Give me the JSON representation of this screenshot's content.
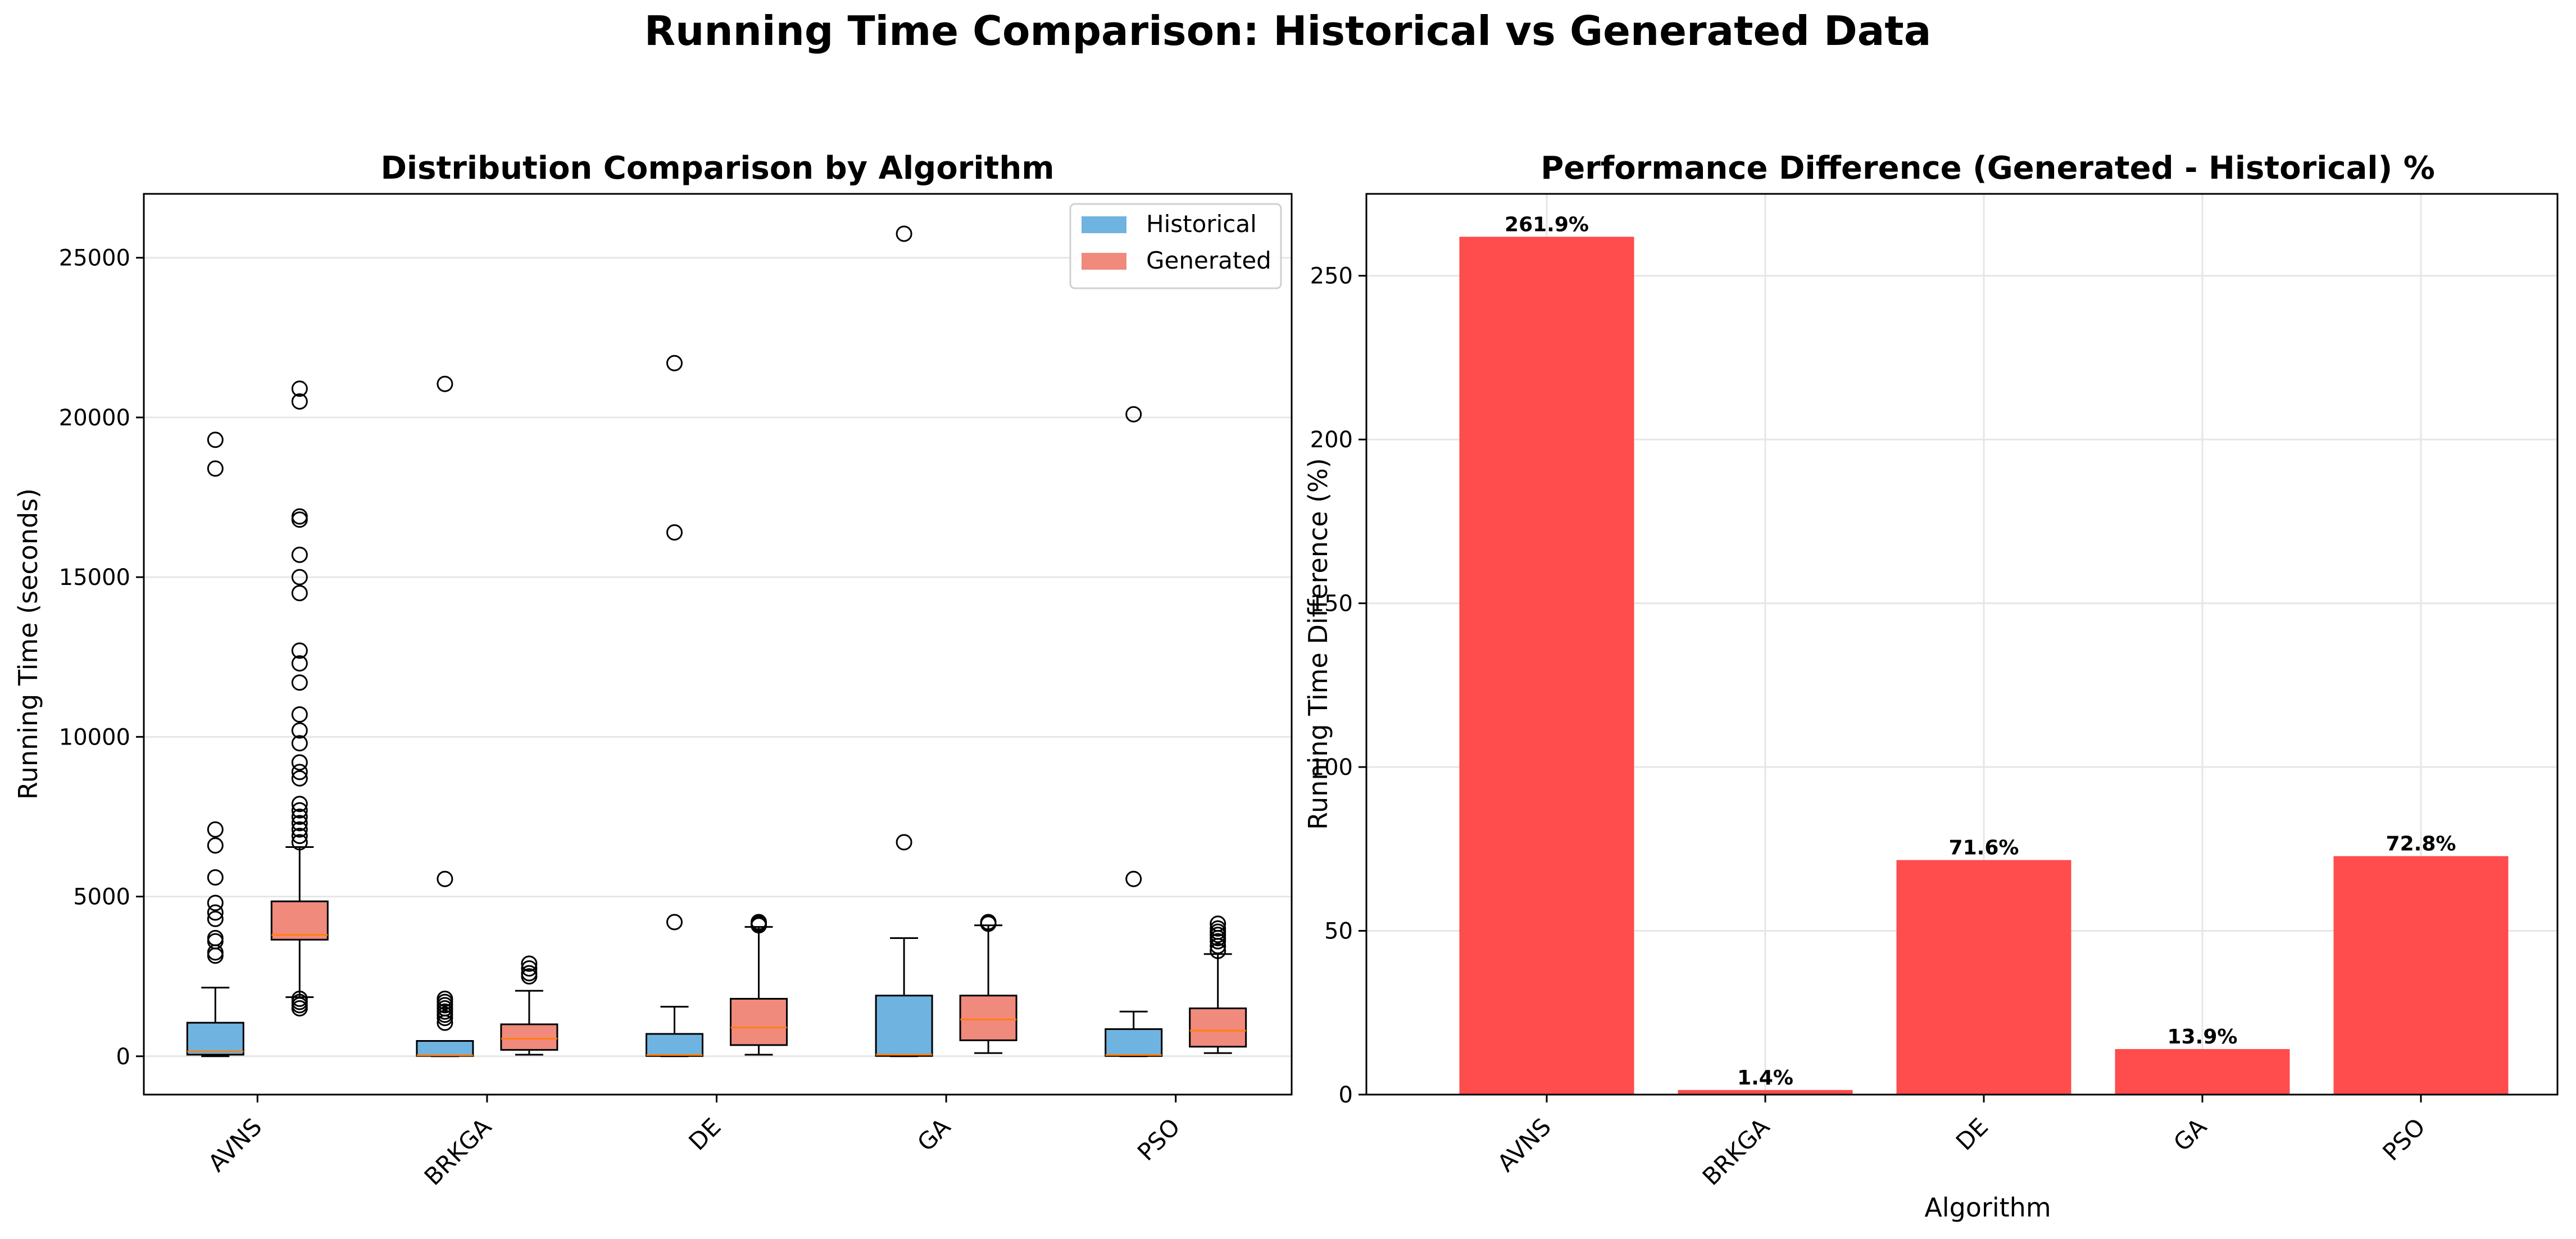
{
  "figure": {
    "title": "Running Time Comparison: Historical vs Generated Data"
  },
  "chart_data": [
    {
      "type": "box",
      "title": "Distribution Comparison by Algorithm",
      "xlabel": "",
      "ylabel": "Running Time (seconds)",
      "categories": [
        "AVNS",
        "BRKGA",
        "DE",
        "GA",
        "PSO"
      ],
      "ylim": [
        -1200,
        27000
      ],
      "yticks": [
        0,
        5000,
        10000,
        15000,
        20000,
        25000
      ],
      "grid": "y",
      "legend_position": "upper right",
      "series": [
        {
          "name": "Historical",
          "color": "#6fb3e0",
          "boxes": [
            {
              "whislo": 0,
              "q1": 50,
              "med": 150,
              "q3": 1050,
              "whishi": 2150,
              "fliers": [
                3150,
                3250,
                3600,
                3700,
                4300,
                4500,
                4800,
                5600,
                6600,
                7100,
                18400,
                19300
              ]
            },
            {
              "whislo": 0,
              "q1": 10,
              "med": 30,
              "q3": 480,
              "whishi": 480,
              "fliers": [
                1050,
                1200,
                1300,
                1400,
                1500,
                1600,
                1700,
                1800,
                5550,
                21050
              ]
            },
            {
              "whislo": 0,
              "q1": 10,
              "med": 40,
              "q3": 700,
              "whishi": 1550,
              "fliers": [
                4200,
                16400,
                21700
              ]
            },
            {
              "whislo": 0,
              "q1": 10,
              "med": 50,
              "q3": 1900,
              "whishi": 3700,
              "fliers": [
                6700,
                25750
              ]
            },
            {
              "whislo": 0,
              "q1": 10,
              "med": 40,
              "q3": 850,
              "whishi": 1400,
              "fliers": [
                5550,
                20100
              ]
            }
          ]
        },
        {
          "name": "Generated",
          "color": "#f08a7c",
          "boxes": [
            {
              "whislo": 1850,
              "q1": 3650,
              "med": 3800,
              "q3": 4850,
              "whishi": 6550,
              "fliers": [
                1500,
                1600,
                1700,
                1800,
                6700,
                6900,
                7100,
                7300,
                7500,
                7700,
                7900,
                8700,
                8900,
                9200,
                9800,
                10200,
                10700,
                11700,
                12300,
                12700,
                14500,
                15000,
                15700,
                16800,
                16900,
                20500,
                20900
              ]
            },
            {
              "whislo": 50,
              "q1": 200,
              "med": 550,
              "q3": 1000,
              "whishi": 2050,
              "fliers": [
                2500,
                2600,
                2750,
                2900
              ]
            },
            {
              "whislo": 50,
              "q1": 350,
              "med": 900,
              "q3": 1800,
              "whishi": 4050,
              "fliers": [
                4100,
                4150,
                4200
              ]
            },
            {
              "whislo": 100,
              "q1": 500,
              "med": 1150,
              "q3": 1900,
              "whishi": 4100,
              "fliers": [
                4150,
                4200
              ]
            },
            {
              "whislo": 100,
              "q1": 300,
              "med": 800,
              "q3": 1500,
              "whishi": 3200,
              "fliers": [
                3300,
                3450,
                3600,
                3700,
                3800,
                3900,
                4000,
                4150
              ]
            }
          ]
        }
      ]
    },
    {
      "type": "bar",
      "title": "Performance Difference (Generated - Historical) %",
      "xlabel": "Algorithm",
      "ylabel": "Running Time Difference (%)",
      "categories": [
        "AVNS",
        "BRKGA",
        "DE",
        "GA",
        "PSO"
      ],
      "values": [
        261.9,
        1.4,
        71.6,
        13.9,
        72.8
      ],
      "labels": [
        "261.9%",
        "1.4%",
        "71.6%",
        "13.9%",
        "72.8%"
      ],
      "color": "#ff4c4c",
      "ylim": [
        0,
        275
      ],
      "yticks": [
        0,
        50,
        100,
        150,
        200,
        250
      ],
      "grid": "both"
    }
  ]
}
